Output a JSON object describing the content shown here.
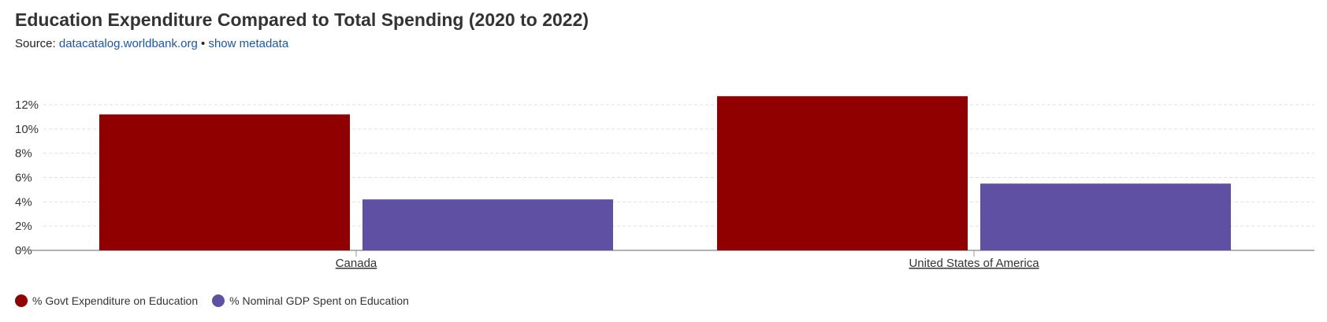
{
  "header": {
    "title": "Education Expenditure Compared to Total Spending (2020 to 2022)",
    "source_prefix": "Source:",
    "source_link": "datacatalog.worldbank.org",
    "separator": "•",
    "metadata_link": "show metadata"
  },
  "chart_data": {
    "type": "bar",
    "title": "Education Expenditure Compared to Total Spending (2020 to 2022)",
    "xlabel": "",
    "ylabel": "",
    "categories": [
      "Canada",
      "United States of America"
    ],
    "series": [
      {
        "name": "% Govt Expenditure on Education",
        "color": "#910000",
        "values": [
          11.2,
          12.7
        ]
      },
      {
        "name": "% Nominal GDP Spent on Education",
        "color": "#6050a3",
        "values": [
          4.2,
          5.5
        ]
      }
    ],
    "ylim": [
      0,
      12
    ],
    "yticks": [
      "0%",
      "2%",
      "4%",
      "6%",
      "8%",
      "10%",
      "12%"
    ],
    "grid": true,
    "legend_position": "bottom-left"
  }
}
